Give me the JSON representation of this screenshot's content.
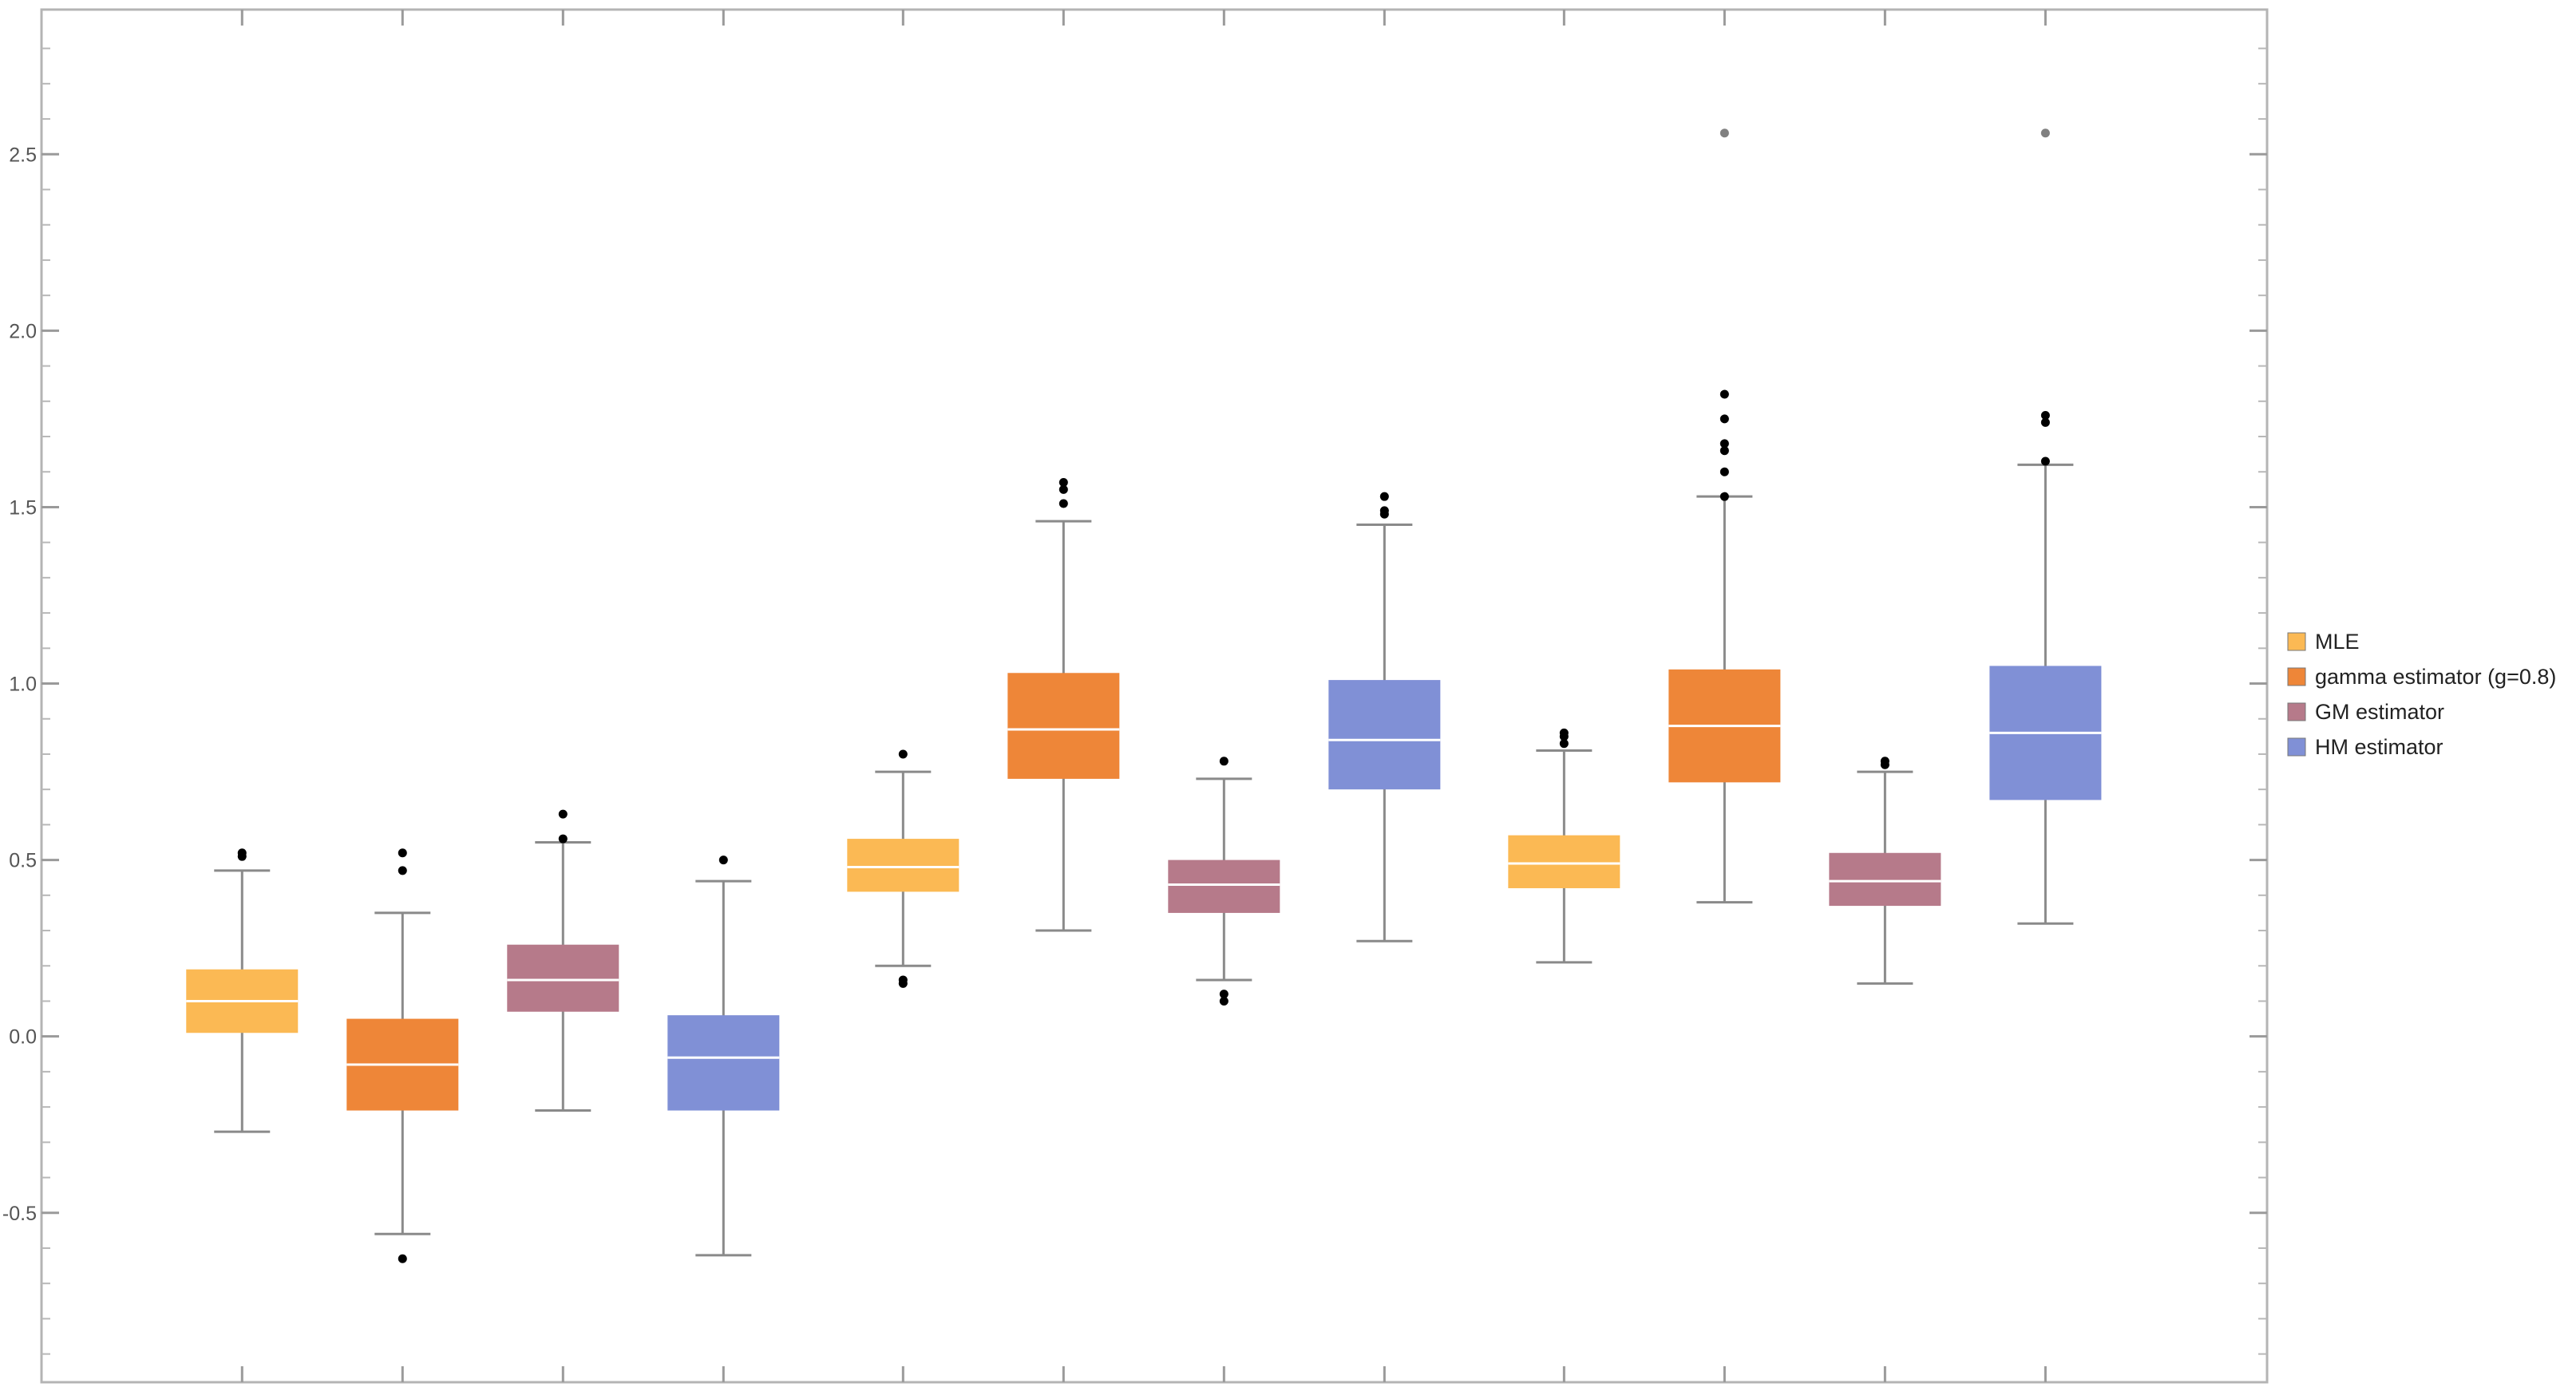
{
  "chart_data": {
    "type": "boxplot",
    "title": "",
    "xlabel": "",
    "ylabel": "",
    "ylim": [
      -0.98,
      2.91
    ],
    "y_ticks": [
      -0.5,
      0.0,
      0.5,
      1.0,
      1.5,
      2.0,
      2.5
    ],
    "y_tick_labels": [
      "-0.5",
      "0.0",
      "0.5",
      "1.0",
      "1.5",
      "2.0",
      "2.5"
    ],
    "grid": false,
    "legend_position": "right",
    "groups": 3,
    "series": [
      {
        "name": "MLE",
        "color": "#FBB954"
      },
      {
        "name": "gamma estimator (g=0.8)",
        "color": "#EE8638"
      },
      {
        "name": "GM estimator",
        "color": "#B67A8A"
      },
      {
        "name": "HM estimator",
        "color": "#8090D6"
      }
    ],
    "boxes": [
      {
        "series": 0,
        "group": 1,
        "whisker_low": -0.27,
        "q1": 0.01,
        "median": 0.1,
        "q3": 0.19,
        "whisker_high": 0.47,
        "outliers": [
          0.51,
          0.52
        ]
      },
      {
        "series": 1,
        "group": 1,
        "whisker_low": -0.56,
        "q1": -0.21,
        "median": -0.08,
        "q3": 0.05,
        "whisker_high": 0.35,
        "outliers": [
          0.47,
          0.52,
          -0.63
        ]
      },
      {
        "series": 2,
        "group": 1,
        "whisker_low": -0.21,
        "q1": 0.07,
        "median": 0.16,
        "q3": 0.26,
        "whisker_high": 0.55,
        "outliers": [
          0.56,
          0.63
        ]
      },
      {
        "series": 3,
        "group": 1,
        "whisker_low": -0.62,
        "q1": -0.21,
        "median": -0.06,
        "q3": 0.06,
        "whisker_high": 0.44,
        "outliers": [
          0.5
        ]
      },
      {
        "series": 0,
        "group": 2,
        "whisker_low": 0.2,
        "q1": 0.41,
        "median": 0.48,
        "q3": 0.56,
        "whisker_high": 0.75,
        "outliers": [
          0.8,
          0.15,
          0.16
        ]
      },
      {
        "series": 1,
        "group": 2,
        "whisker_low": 0.3,
        "q1": 0.73,
        "median": 0.87,
        "q3": 1.03,
        "whisker_high": 1.46,
        "outliers": [
          1.51,
          1.55,
          1.57
        ]
      },
      {
        "series": 2,
        "group": 2,
        "whisker_low": 0.16,
        "q1": 0.35,
        "median": 0.43,
        "q3": 0.5,
        "whisker_high": 0.73,
        "outliers": [
          0.78,
          0.1,
          0.12
        ]
      },
      {
        "series": 3,
        "group": 2,
        "whisker_low": 0.27,
        "q1": 0.7,
        "median": 0.84,
        "q3": 1.01,
        "whisker_high": 1.45,
        "outliers": [
          1.48,
          1.49,
          1.53
        ]
      },
      {
        "series": 0,
        "group": 3,
        "whisker_low": 0.21,
        "q1": 0.42,
        "median": 0.49,
        "q3": 0.57,
        "whisker_high": 0.81,
        "outliers": [
          0.83,
          0.85,
          0.86
        ]
      },
      {
        "series": 1,
        "group": 3,
        "whisker_low": 0.38,
        "q1": 0.72,
        "median": 0.88,
        "q3": 1.04,
        "whisker_high": 1.53,
        "outliers": [
          1.53,
          1.6,
          1.66,
          1.68,
          1.75,
          1.82,
          2.56
        ]
      },
      {
        "series": 2,
        "group": 3,
        "whisker_low": 0.15,
        "q1": 0.37,
        "median": 0.44,
        "q3": 0.52,
        "whisker_high": 0.75,
        "outliers": [
          0.77,
          0.78
        ]
      },
      {
        "series": 3,
        "group": 3,
        "whisker_low": 0.32,
        "q1": 0.67,
        "median": 0.86,
        "q3": 1.05,
        "whisker_high": 1.62,
        "outliers": [
          1.63,
          1.74,
          1.76,
          2.56
        ]
      }
    ]
  }
}
